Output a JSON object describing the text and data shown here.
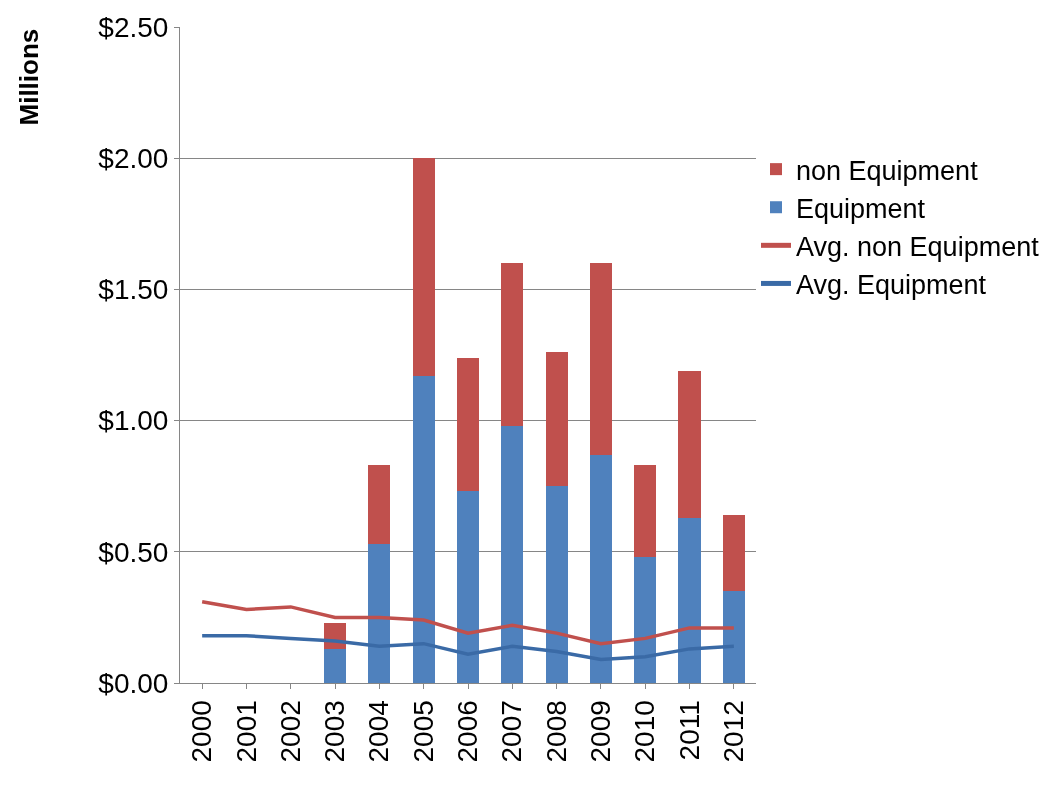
{
  "chart_data": {
    "type": "bar",
    "stacked": true,
    "ylabel": "Millions",
    "categories": [
      "2000",
      "2001",
      "2002",
      "2003",
      "2004",
      "2005",
      "2006",
      "2007",
      "2008",
      "2009",
      "2010",
      "2011",
      "2012"
    ],
    "series": [
      {
        "name": "Equipment",
        "color": "#4f81bd",
        "values": [
          null,
          null,
          null,
          0.13,
          0.53,
          1.17,
          0.73,
          0.98,
          0.75,
          0.87,
          0.48,
          0.63,
          0.35
        ]
      },
      {
        "name": "non Equipment",
        "color": "#c0504d",
        "values": [
          null,
          null,
          null,
          0.1,
          0.3,
          0.83,
          0.51,
          0.62,
          0.51,
          0.73,
          0.35,
          0.56,
          0.29
        ]
      },
      {
        "name": "Avg. non Equipment",
        "type": "line",
        "color": "#c0504d",
        "values": [
          0.31,
          0.28,
          0.29,
          0.25,
          0.25,
          0.24,
          0.19,
          0.22,
          0.19,
          0.15,
          0.17,
          0.21,
          0.21
        ]
      },
      {
        "name": "Avg. Equipment",
        "type": "line",
        "color": "#3a6aa6",
        "values": [
          0.18,
          0.18,
          0.17,
          0.16,
          0.14,
          0.15,
          0.11,
          0.14,
          0.12,
          0.09,
          0.1,
          0.13,
          0.14
        ]
      }
    ],
    "ylim": [
      0,
      2.5
    ],
    "yticks": [
      {
        "value": 0,
        "label": "$0.00"
      },
      {
        "value": 0.5,
        "label": "$0.50"
      },
      {
        "value": 1,
        "label": "$1.00"
      },
      {
        "value": 1.5,
        "label": "$1.50"
      },
      {
        "value": 2,
        "label": "$2.00"
      },
      {
        "value": 2.5,
        "label": "$2.50"
      }
    ],
    "grid": "y",
    "legend": "right",
    "marker": "none",
    "line_style": "solid"
  }
}
